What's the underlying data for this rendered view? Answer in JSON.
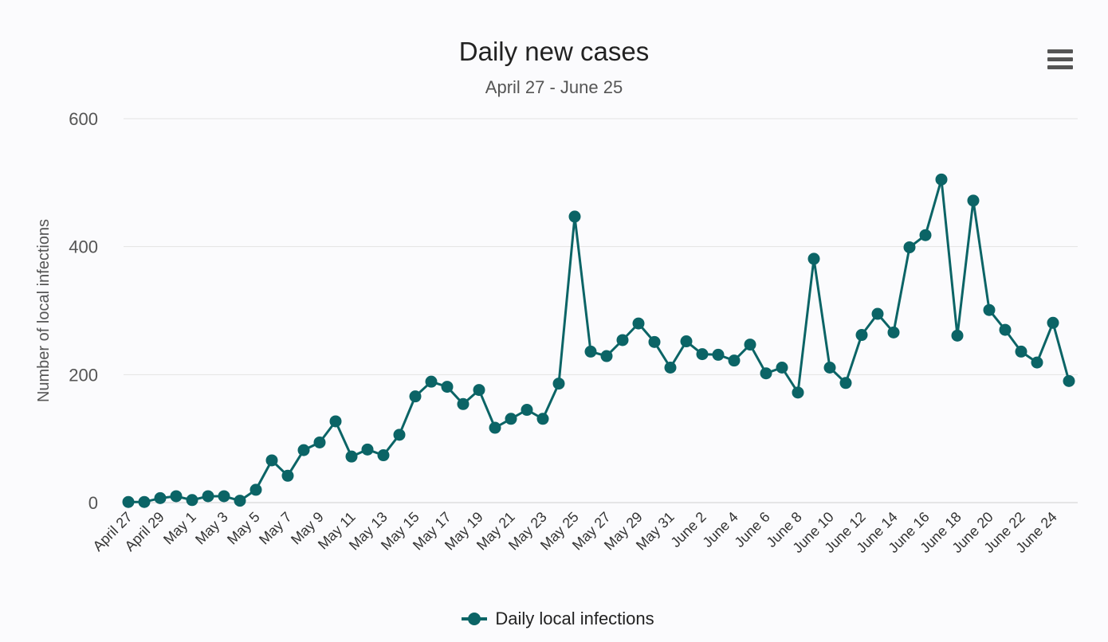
{
  "header": {
    "title": "Daily new cases",
    "subtitle": "April 27 - June 25",
    "menu_icon": "hamburger-menu-icon"
  },
  "colors": {
    "series": "#0b6466",
    "grid": "#e3e3e3",
    "axis_text": "#555555",
    "background": "#fbfbfd"
  },
  "chart_data": {
    "type": "line",
    "title": "Daily new cases",
    "subtitle": "April 27 - June 25",
    "xlabel": "",
    "ylabel": "Number of local infections",
    "ylim": [
      0,
      600
    ],
    "yticks": [
      0,
      200,
      400,
      600
    ],
    "grid": true,
    "legend": "bottom-center",
    "x": [
      "April 27",
      "April 28",
      "April 29",
      "April 30",
      "May 1",
      "May 2",
      "May 3",
      "May 4",
      "May 5",
      "May 6",
      "May 7",
      "May 8",
      "May 9",
      "May 10",
      "May 11",
      "May 12",
      "May 13",
      "May 14",
      "May 15",
      "May 16",
      "May 17",
      "May 18",
      "May 19",
      "May 20",
      "May 21",
      "May 22",
      "May 23",
      "May 24",
      "May 25",
      "May 26",
      "May 27",
      "May 28",
      "May 29",
      "May 30",
      "May 31",
      "June 1",
      "June 2",
      "June 3",
      "June 4",
      "June 5",
      "June 6",
      "June 7",
      "June 8",
      "June 9",
      "June 10",
      "June 11",
      "June 12",
      "June 13",
      "June 14",
      "June 15",
      "June 16",
      "June 17",
      "June 18",
      "June 19",
      "June 20",
      "June 21",
      "June 22",
      "June 23",
      "June 24",
      "June 25"
    ],
    "xtick_labels": [
      "April 27",
      "April 29",
      "May 1",
      "May 3",
      "May 5",
      "May 7",
      "May 9",
      "May 11",
      "May 13",
      "May 15",
      "May 17",
      "May 19",
      "May 21",
      "May 23",
      "May 25",
      "May 27",
      "May 29",
      "May 31",
      "June 2",
      "June 4",
      "June 6",
      "June 8",
      "June 10",
      "June 12",
      "June 14",
      "June 16",
      "June 18",
      "June 20",
      "June 22",
      "June 24"
    ],
    "series": [
      {
        "name": "Daily local infections",
        "values": [
          1,
          1,
          7,
          10,
          4,
          10,
          10,
          3,
          20,
          66,
          42,
          82,
          94,
          127,
          72,
          83,
          74,
          106,
          166,
          189,
          181,
          154,
          176,
          117,
          131,
          145,
          131,
          186,
          447,
          236,
          229,
          254,
          280,
          251,
          211,
          252,
          232,
          231,
          222,
          247,
          202,
          211,
          172,
          381,
          211,
          187,
          262,
          295,
          266,
          399,
          418,
          505,
          261,
          472,
          301,
          270,
          236,
          219,
          281,
          190
        ]
      }
    ]
  }
}
